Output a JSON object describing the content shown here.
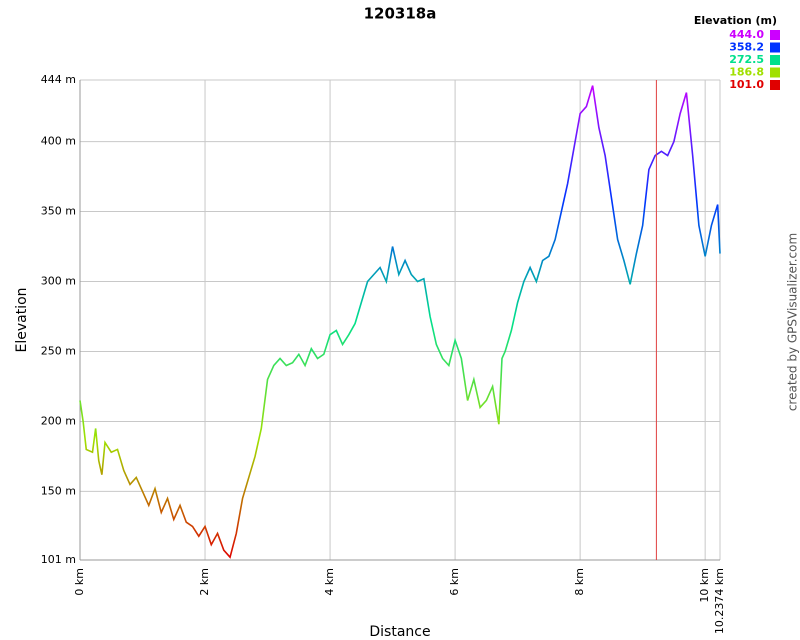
{
  "chart_data": {
    "type": "line",
    "title": "120318a",
    "x_label": "Distance",
    "y_label": "Elevation",
    "credit": "created by GPSVisualizer.com",
    "legend_title": "Elevation (m)",
    "color_scale": [
      {
        "value": 444.0,
        "label": "444.0",
        "color": "#cc00ff"
      },
      {
        "value": 358.2,
        "label": "358.2",
        "color": "#0033ff"
      },
      {
        "value": 272.5,
        "label": "272.5",
        "color": "#00e08c"
      },
      {
        "value": 186.8,
        "label": "186.8",
        "color": "#a0e000"
      },
      {
        "value": 101.0,
        "label": "101.0",
        "color": "#e00000"
      }
    ],
    "xlim": [
      0,
      10.2374
    ],
    "ylim": [
      101,
      444
    ],
    "xticks": [
      {
        "value": 0,
        "label": "0 km"
      },
      {
        "value": 2,
        "label": "2 km"
      },
      {
        "value": 4,
        "label": "4 km"
      },
      {
        "value": 6,
        "label": "6 km"
      },
      {
        "value": 8,
        "label": "8 km"
      },
      {
        "value": 10,
        "label": "10 km"
      },
      {
        "value": 10.2374,
        "label": "10.2374 km"
      }
    ],
    "yticks": [
      {
        "value": 101,
        "label": "101 m"
      },
      {
        "value": 150,
        "label": "150 m"
      },
      {
        "value": 200,
        "label": "200 m"
      },
      {
        "value": 250,
        "label": "250 m"
      },
      {
        "value": 300,
        "label": "300 m"
      },
      {
        "value": 350,
        "label": "350 m"
      },
      {
        "value": 400,
        "label": "400 m"
      },
      {
        "value": 444,
        "label": "444 m"
      }
    ],
    "grid": true,
    "marker_x": 9.22,
    "marker_color": "#e04040",
    "x": [
      0,
      0.05,
      0.1,
      0.2,
      0.25,
      0.3,
      0.35,
      0.4,
      0.5,
      0.6,
      0.7,
      0.8,
      0.9,
      1.0,
      1.1,
      1.2,
      1.3,
      1.4,
      1.5,
      1.6,
      1.7,
      1.8,
      1.9,
      2.0,
      2.1,
      2.2,
      2.3,
      2.4,
      2.5,
      2.6,
      2.7,
      2.8,
      2.9,
      3.0,
      3.1,
      3.2,
      3.3,
      3.4,
      3.5,
      3.6,
      3.7,
      3.8,
      3.9,
      4.0,
      4.1,
      4.2,
      4.3,
      4.4,
      4.5,
      4.6,
      4.7,
      4.8,
      4.9,
      5.0,
      5.1,
      5.2,
      5.3,
      5.4,
      5.5,
      5.6,
      5.7,
      5.8,
      5.9,
      6.0,
      6.1,
      6.2,
      6.3,
      6.4,
      6.5,
      6.6,
      6.7,
      6.75,
      6.8,
      6.9,
      7.0,
      7.1,
      7.2,
      7.3,
      7.4,
      7.5,
      7.6,
      7.7,
      7.8,
      7.9,
      8.0,
      8.1,
      8.2,
      8.3,
      8.4,
      8.5,
      8.6,
      8.7,
      8.8,
      8.9,
      9.0,
      9.1,
      9.2,
      9.3,
      9.4,
      9.5,
      9.6,
      9.7,
      9.8,
      9.9,
      10.0,
      10.1,
      10.2,
      10.2374
    ],
    "series": [
      {
        "name": "Elevation",
        "values": [
          215,
          200,
          180,
          178,
          195,
          172,
          162,
          185,
          178,
          180,
          165,
          155,
          160,
          150,
          140,
          152,
          135,
          145,
          130,
          140,
          128,
          125,
          118,
          125,
          112,
          120,
          108,
          103,
          120,
          145,
          160,
          175,
          195,
          230,
          240,
          245,
          240,
          242,
          248,
          240,
          252,
          245,
          248,
          262,
          265,
          255,
          262,
          270,
          285,
          300,
          305,
          310,
          300,
          325,
          305,
          315,
          305,
          300,
          302,
          275,
          255,
          245,
          240,
          258,
          245,
          215,
          230,
          210,
          215,
          225,
          198,
          245,
          250,
          265,
          285,
          300,
          310,
          300,
          315,
          318,
          330,
          350,
          370,
          395,
          420,
          425,
          440,
          410,
          390,
          360,
          330,
          315,
          298,
          320,
          340,
          380,
          390,
          393,
          390,
          400,
          420,
          435,
          390,
          340,
          318,
          340,
          355,
          320
        ]
      }
    ]
  }
}
